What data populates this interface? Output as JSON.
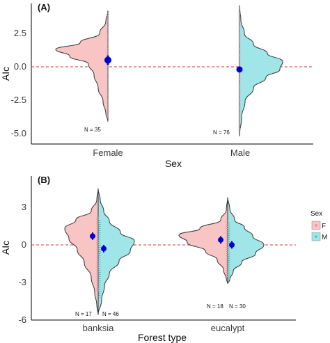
{
  "colors": {
    "female": "#f8c4c4",
    "male": "#a0e5e8",
    "point": "#0000cc",
    "refline": "#e03030",
    "outline": "#333333",
    "jitter_f": "#ee8888",
    "jitter_m": "#33c4cc"
  },
  "chart_data": [
    {
      "type": "violin",
      "panel_label": "(A)",
      "xlabel": "Sex",
      "ylabel": "AIc",
      "categories": [
        "Female",
        "Male"
      ],
      "yticks": [
        "2.5",
        "0.0",
        "-2.5",
        "-5.0"
      ],
      "ylim": [
        -5.3,
        4.9
      ],
      "reference_line_y": 0,
      "grid": false,
      "means": [
        0.5,
        -0.2
      ],
      "n_labels": [
        "N = 35",
        "N = 76"
      ],
      "violin_ranges": [
        [
          -4.1,
          4.2
        ],
        [
          -5.2,
          4.6
        ]
      ]
    },
    {
      "type": "split-violin",
      "panel_label": "(B)",
      "xlabel": "Forest type",
      "ylabel": "AIc",
      "categories": [
        "banksia",
        "eucalypt"
      ],
      "yticks": [
        "3",
        "0",
        "-3",
        "-6"
      ],
      "ylim": [
        -6.1,
        4.5
      ],
      "reference_line_y": 0,
      "grid": false,
      "series": [
        {
          "name": "F",
          "means": [
            0.7,
            0.4
          ]
        },
        {
          "name": "M",
          "means": [
            -0.3,
            0.0
          ]
        }
      ],
      "n_labels": [
        [
          "N = 17",
          "N = 46"
        ],
        [
          "N = 18",
          "N = 30"
        ]
      ],
      "legend": {
        "title": "Sex",
        "entries": [
          "F",
          "M"
        ],
        "placement": "right"
      }
    }
  ]
}
